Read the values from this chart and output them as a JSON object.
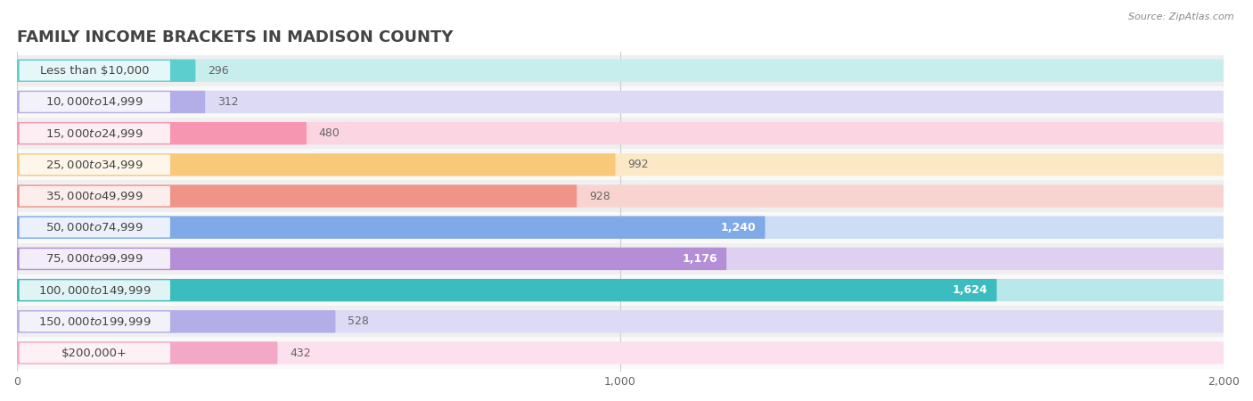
{
  "title": "FAMILY INCOME BRACKETS IN MADISON COUNTY",
  "source": "Source: ZipAtlas.com",
  "categories": [
    "Less than $10,000",
    "$10,000 to $14,999",
    "$15,000 to $24,999",
    "$25,000 to $34,999",
    "$35,000 to $49,999",
    "$50,000 to $74,999",
    "$75,000 to $99,999",
    "$100,000 to $149,999",
    "$150,000 to $199,999",
    "$200,000+"
  ],
  "values": [
    296,
    312,
    480,
    992,
    928,
    1240,
    1176,
    1624,
    528,
    432
  ],
  "bar_colors": [
    "#5dcece",
    "#b3aee8",
    "#f895b0",
    "#f9c97a",
    "#f0948a",
    "#80a9e8",
    "#b48fd8",
    "#3bbcbe",
    "#b3aee8",
    "#f4a8c8"
  ],
  "bar_bg_colors": [
    "#c8eded",
    "#dddaf6",
    "#fcd5e3",
    "#fde8c5",
    "#f9d3cf",
    "#cdddf6",
    "#ddd0f0",
    "#b8e8e9",
    "#dddaf6",
    "#fce0ed"
  ],
  "row_bg_colors": [
    "#efefef",
    "#f9f9f9"
  ],
  "xlim": [
    0,
    2000
  ],
  "xticks": [
    0,
    1000,
    2000
  ],
  "title_fontsize": 13,
  "label_fontsize": 9.5,
  "value_fontsize": 9,
  "background_color": "#ffffff"
}
